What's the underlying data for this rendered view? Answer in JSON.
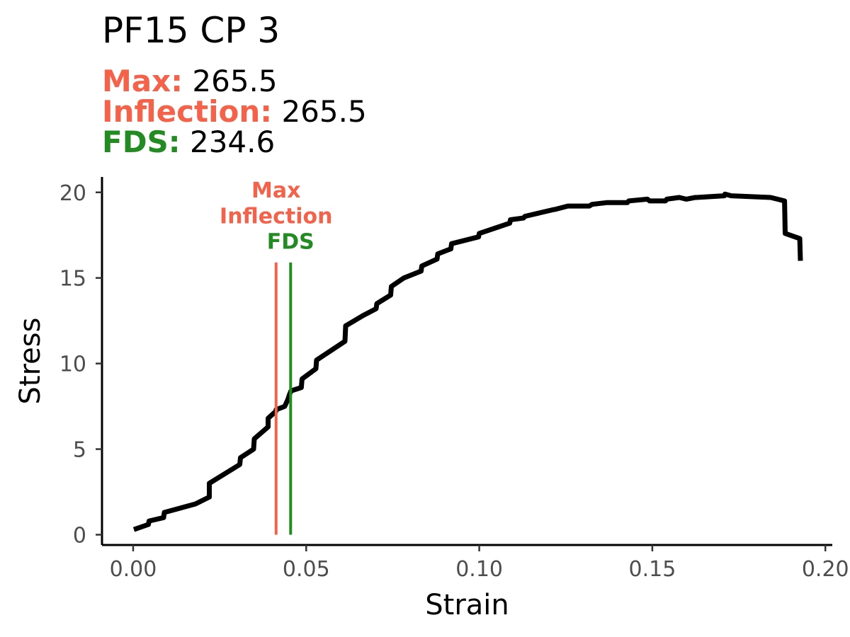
{
  "title": "PF15 CP 3",
  "stats": {
    "max_label": "Max:",
    "max_value": "265.5",
    "inflection_label": "Inflection:",
    "inflection_value": "265.5",
    "fds_label": "FDS:",
    "fds_value": "234.6"
  },
  "colors": {
    "max": "#f4624a",
    "inflection": "#f4624a",
    "fds": "#228b22",
    "curve": "#000000"
  },
  "chart_data": {
    "type": "line",
    "xlabel": "Strain",
    "ylabel": "Stress",
    "xlim": [
      -0.009,
      0.202
    ],
    "ylim": [
      -0.6,
      20.9
    ],
    "x_ticks": [
      0.0,
      0.05,
      0.1,
      0.15,
      0.2
    ],
    "x_tick_labels": [
      "0.00",
      "0.05",
      "0.10",
      "0.15",
      "0.20"
    ],
    "y_ticks": [
      0,
      5,
      10,
      15,
      20
    ],
    "y_tick_labels": [
      "0",
      "5",
      "10",
      "15",
      "20"
    ],
    "grid": false,
    "series": [
      {
        "x": [
          0.0002,
          0.0044,
          0.0046,
          0.0088,
          0.009,
          0.018,
          0.022,
          0.022,
          0.0308,
          0.031,
          0.0348,
          0.035,
          0.039,
          0.039,
          0.0412,
          0.0413,
          0.0438,
          0.0447,
          0.0452,
          0.0456,
          0.0486,
          0.0488,
          0.0528,
          0.053,
          0.0612,
          0.0614,
          0.0664,
          0.0702,
          0.0704,
          0.0744,
          0.0746,
          0.0782,
          0.0832,
          0.0834,
          0.0878,
          0.088,
          0.0918,
          0.092,
          0.0998,
          0.1,
          0.1088,
          0.109,
          0.1128,
          0.1132,
          0.1216,
          0.1218,
          0.1256,
          0.1258,
          0.1318,
          0.1326,
          0.1368,
          0.1372,
          0.1428,
          0.1432,
          0.1486,
          0.1492,
          0.1538,
          0.1542,
          0.1578,
          0.1598,
          0.1624,
          0.1628,
          0.1708,
          0.171,
          0.1728,
          0.1842,
          0.1882,
          0.1884,
          0.1926,
          0.1928
        ],
        "y": [
          0.3,
          0.6,
          0.8,
          1.0,
          1.3,
          1.8,
          2.2,
          3.0,
          4.1,
          4.5,
          5.0,
          5.6,
          6.3,
          6.8,
          7.2,
          7.3,
          7.5,
          7.9,
          8.2,
          8.4,
          8.6,
          9.1,
          9.7,
          10.2,
          11.3,
          12.2,
          12.8,
          13.2,
          13.5,
          14.0,
          14.5,
          15.0,
          15.4,
          15.7,
          16.1,
          16.4,
          16.7,
          17.0,
          17.4,
          17.6,
          18.2,
          18.4,
          18.5,
          18.6,
          19.0,
          19.0,
          19.2,
          19.2,
          19.2,
          19.3,
          19.4,
          19.4,
          19.4,
          19.5,
          19.6,
          19.5,
          19.5,
          19.6,
          19.7,
          19.6,
          19.7,
          19.7,
          19.8,
          19.9,
          19.8,
          19.7,
          19.5,
          17.6,
          17.3,
          16.0
        ]
      }
    ],
    "vlines": [
      {
        "x": 0.0413,
        "y_top": 15.9,
        "color_key": "max"
      },
      {
        "x": 0.0455,
        "y_top": 15.9,
        "color_key": "fds"
      }
    ],
    "annotations": [
      {
        "text": "Max",
        "x": 0.0413,
        "y": 19.7,
        "color_key": "max"
      },
      {
        "text": "Inflection",
        "x": 0.0413,
        "y": 18.2,
        "color_key": "inflection"
      },
      {
        "text": "FDS",
        "x": 0.0455,
        "y": 16.7,
        "color_key": "fds"
      }
    ]
  }
}
